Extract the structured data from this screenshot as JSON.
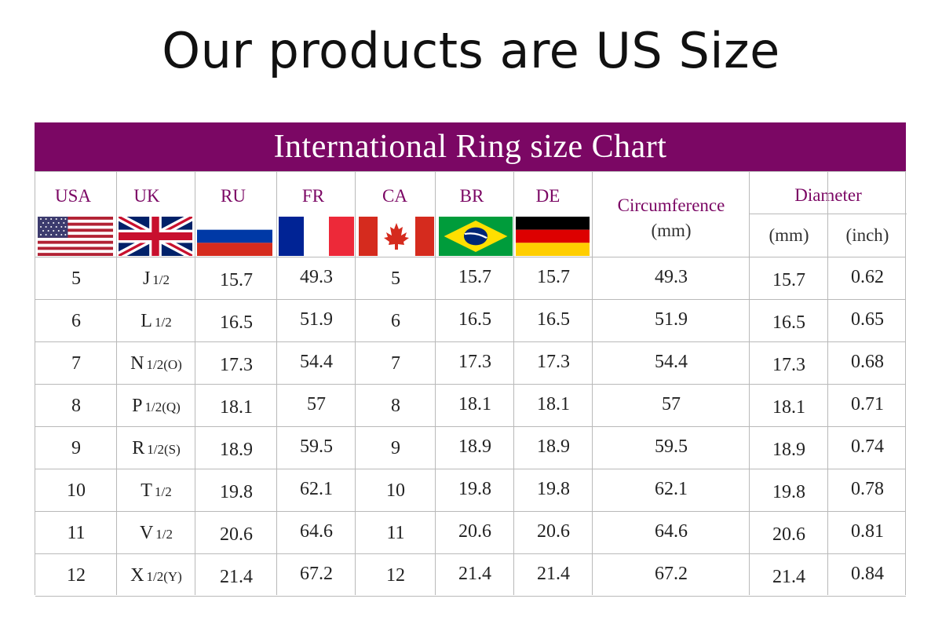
{
  "headline": "Our products are US Size",
  "banner": "International Ring size Chart",
  "columns": {
    "usa": "USA",
    "uk": "UK",
    "ru": "RU",
    "fr": "FR",
    "ca": "CA",
    "br": "BR",
    "de": "DE",
    "circumference": "Circumference",
    "circumference_unit": "(mm)",
    "diameter": "Diameter",
    "diameter_mm": "(mm)",
    "diameter_inch": "(inch)"
  },
  "flags": {
    "usa": "usa-flag-icon",
    "uk": "uk-flag-icon",
    "ru": "russia-flag-icon",
    "fr": "france-flag-icon",
    "ca": "canada-flag-icon",
    "br": "brazil-flag-icon",
    "de": "germany-flag-icon"
  },
  "colors": {
    "banner": "#7b0764",
    "header_text": "#7b0764",
    "grid": "#b9b9b9"
  },
  "rows": [
    {
      "usa": "5",
      "uk": "J",
      "uk_frac": "1/2",
      "ru": "15.7",
      "fr": "49.3",
      "ca": "5",
      "br": "15.7",
      "de": "15.7",
      "circ": "49.3",
      "dmm": "15.7",
      "dinch": "0.62"
    },
    {
      "usa": "6",
      "uk": "L",
      "uk_frac": "1/2",
      "ru": "16.5",
      "fr": "51.9",
      "ca": "6",
      "br": "16.5",
      "de": "16.5",
      "circ": "51.9",
      "dmm": "16.5",
      "dinch": "0.65"
    },
    {
      "usa": "7",
      "uk": "N",
      "uk_frac": "1/2(O)",
      "ru": "17.3",
      "fr": "54.4",
      "ca": "7",
      "br": "17.3",
      "de": "17.3",
      "circ": "54.4",
      "dmm": "17.3",
      "dinch": "0.68"
    },
    {
      "usa": "8",
      "uk": "P",
      "uk_frac": "1/2(Q)",
      "ru": "18.1",
      "fr": "57",
      "ca": "8",
      "br": "18.1",
      "de": "18.1",
      "circ": "57",
      "dmm": "18.1",
      "dinch": "0.71"
    },
    {
      "usa": "9",
      "uk": "R",
      "uk_frac": "1/2(S)",
      "ru": "18.9",
      "fr": "59.5",
      "ca": "9",
      "br": "18.9",
      "de": "18.9",
      "circ": "59.5",
      "dmm": "18.9",
      "dinch": "0.74"
    },
    {
      "usa": "10",
      "uk": "T",
      "uk_frac": "1/2",
      "ru": "19.8",
      "fr": "62.1",
      "ca": "10",
      "br": "19.8",
      "de": "19.8",
      "circ": "62.1",
      "dmm": "19.8",
      "dinch": "0.78"
    },
    {
      "usa": "11",
      "uk": "V",
      "uk_frac": "1/2",
      "ru": "20.6",
      "fr": "64.6",
      "ca": "11",
      "br": "20.6",
      "de": "20.6",
      "circ": "64.6",
      "dmm": "20.6",
      "dinch": "0.81"
    },
    {
      "usa": "12",
      "uk": "X",
      "uk_frac": "1/2(Y)",
      "ru": "21.4",
      "fr": "67.2",
      "ca": "12",
      "br": "21.4",
      "de": "21.4",
      "circ": "67.2",
      "dmm": "21.4",
      "dinch": "0.84"
    }
  ]
}
